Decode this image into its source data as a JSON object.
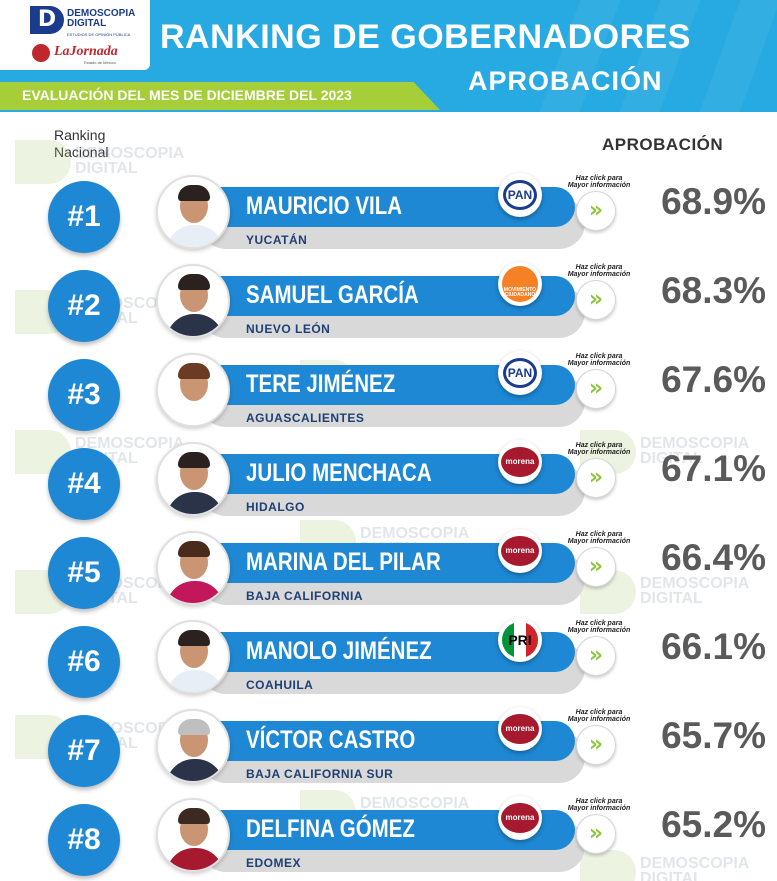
{
  "header": {
    "logo_name": "DEMOSCOPIA DIGITAL",
    "logo_tagline": "ESTUDIOS DE OPINIÓN PÚBLICA",
    "media_logo": "LaJornada",
    "media_logo_sub": "Estado de México",
    "title": "RANKING DE GOBERNADORES",
    "subtitle": "APROBACIÓN",
    "evaluation": "EVALUACIÓN DEL MES DE DICIEMBRE DEL 2023"
  },
  "columns": {
    "rank_line1": "Ranking",
    "rank_line2": "Nacional",
    "approval": "APROBACIÓN"
  },
  "info_hint": "Haz click para Mayor información",
  "watermark": {
    "line1": "DEMOSCOPIA",
    "line2": "DIGITAL"
  },
  "colors": {
    "header_blue": "#27a9e1",
    "row_blue": "#1e88d4",
    "green": "#a6ce39",
    "percent_gray": "#5a5a5a"
  },
  "rows": [
    {
      "rank": "#1",
      "name": "MAURICIO VILA",
      "state": "YUCATÁN",
      "party": "PAN",
      "approval": "68.9%",
      "approval_value": 68.9
    },
    {
      "rank": "#2",
      "name": "SAMUEL GARCÍA",
      "state": "NUEVO LEÓN",
      "party": "MOVIMIENTO CIUDADANO",
      "approval": "68.3%",
      "approval_value": 68.3
    },
    {
      "rank": "#3",
      "name": "TERE JIMÉNEZ",
      "state": "AGUASCALIENTES",
      "party": "PAN",
      "approval": "67.6%",
      "approval_value": 67.6
    },
    {
      "rank": "#4",
      "name": "JULIO MENCHACA",
      "state": "HIDALGO",
      "party": "morena",
      "approval": "67.1%",
      "approval_value": 67.1
    },
    {
      "rank": "#5",
      "name": "MARINA DEL PILAR",
      "state": "BAJA CALIFORNIA",
      "party": "morena",
      "approval": "66.4%",
      "approval_value": 66.4
    },
    {
      "rank": "#6",
      "name": "MANOLO JIMÉNEZ",
      "state": "COAHUILA",
      "party": "PRI",
      "approval": "66.1%",
      "approval_value": 66.1
    },
    {
      "rank": "#7",
      "name": "VÍCTOR CASTRO",
      "state": "BAJA CALIFORNIA SUR",
      "party": "morena",
      "approval": "65.7%",
      "approval_value": 65.7
    },
    {
      "rank": "#8",
      "name": "DELFINA GÓMEZ",
      "state": "EDOMEX",
      "party": "morena",
      "approval": "65.2%",
      "approval_value": 65.2
    }
  ]
}
